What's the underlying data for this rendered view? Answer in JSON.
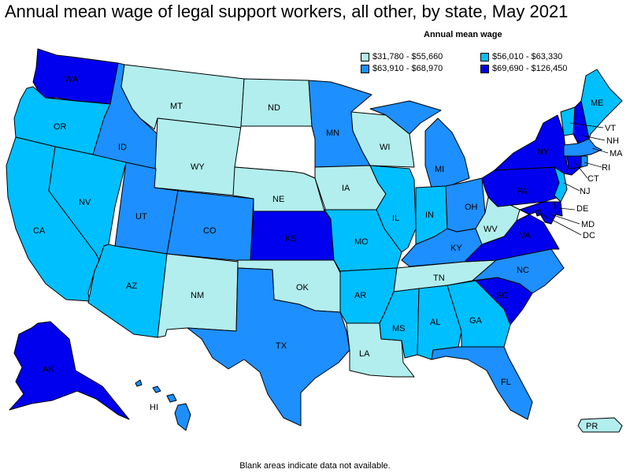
{
  "title": "Annual mean wage of legal support workers, all other, by state, May 2021",
  "legend": {
    "title": "Annual mean wage",
    "items": [
      {
        "label": "$31,780 - $55,660",
        "color": "#b2eeee"
      },
      {
        "label": "$56,010 - $63,330",
        "color": "#00bfff"
      },
      {
        "label": "$63,910 - $68,970",
        "color": "#1e8fff"
      },
      {
        "label": "$69,690 - $126,450",
        "color": "#0000ee"
      }
    ]
  },
  "footnote": "Blank areas indicate data not available.",
  "colors": {
    "nodata": "#ffffff",
    "stroke": "#000000"
  },
  "states": {
    "WA": {
      "label": "WA",
      "class": 3
    },
    "OR": {
      "label": "OR",
      "class": 1
    },
    "CA": {
      "label": "CA",
      "class": 1
    },
    "ID": {
      "label": "ID",
      "class": 2
    },
    "NV": {
      "label": "NV",
      "class": 1
    },
    "MT": {
      "label": "MT",
      "class": 0
    },
    "WY": {
      "label": "WY",
      "class": 0
    },
    "UT": {
      "label": "UT",
      "class": 2
    },
    "AZ": {
      "label": "AZ",
      "class": 1
    },
    "CO": {
      "label": "CO",
      "class": 2
    },
    "NM": {
      "label": "NM",
      "class": 0
    },
    "ND": {
      "label": "ND",
      "class": 0
    },
    "SD": {
      "label": "",
      "class": -1
    },
    "NE": {
      "label": "NE",
      "class": 0
    },
    "KS": {
      "label": "KS",
      "class": 3
    },
    "OK": {
      "label": "OK",
      "class": 0
    },
    "TX": {
      "label": "TX",
      "class": 2
    },
    "MN": {
      "label": "MN",
      "class": 2
    },
    "IA": {
      "label": "IA",
      "class": 0
    },
    "MO": {
      "label": "MO",
      "class": 1
    },
    "AR": {
      "label": "AR",
      "class": 1
    },
    "LA": {
      "label": "LA",
      "class": 0
    },
    "WI": {
      "label": "WI",
      "class": 0
    },
    "IL": {
      "label": "IL",
      "class": 1
    },
    "MI": {
      "label": "MI",
      "class": 2
    },
    "IN": {
      "label": "IN",
      "class": 1
    },
    "OH": {
      "label": "OH",
      "class": 2
    },
    "KY": {
      "label": "KY",
      "class": 2
    },
    "TN": {
      "label": "TN",
      "class": 0
    },
    "MS": {
      "label": "MS",
      "class": 1
    },
    "AL": {
      "label": "AL",
      "class": 1
    },
    "GA": {
      "label": "GA",
      "class": 1
    },
    "FL": {
      "label": "FL",
      "class": 2
    },
    "SC": {
      "label": "SC",
      "class": 3
    },
    "NC": {
      "label": "NC",
      "class": 2
    },
    "VA": {
      "label": "VA",
      "class": 3
    },
    "WV": {
      "label": "WV",
      "class": 0
    },
    "PA": {
      "label": "PA",
      "class": 3
    },
    "NY": {
      "label": "NY",
      "class": 3
    },
    "VT": {
      "label": "VT",
      "class": 1
    },
    "NH": {
      "label": "NH",
      "class": 3
    },
    "ME": {
      "label": "ME",
      "class": 1
    },
    "MA": {
      "label": "MA",
      "class": 2
    },
    "RI": {
      "label": "RI",
      "class": 2
    },
    "CT": {
      "label": "CT",
      "class": 3
    },
    "NJ": {
      "label": "NJ",
      "class": 1
    },
    "DE": {
      "label": "DE",
      "class": 3
    },
    "MD": {
      "label": "MD",
      "class": 3
    },
    "DC": {
      "label": "DC",
      "class": 3
    },
    "AK": {
      "label": "AK",
      "class": 3
    },
    "HI": {
      "label": "HI",
      "class": 2
    },
    "PR": {
      "label": "PR",
      "class": 0
    }
  }
}
